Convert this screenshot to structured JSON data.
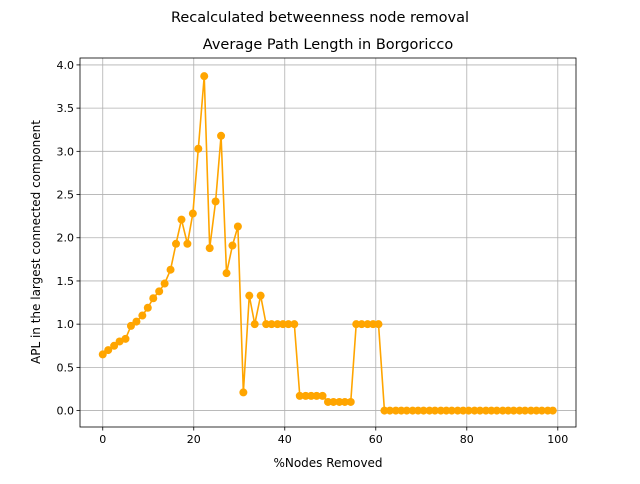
{
  "figure": {
    "suptitle": "Recalculated betweenness node removal"
  },
  "chart_data": {
    "type": "line",
    "title": "Average Path Length in Borgoricco",
    "xlabel": "%Nodes Removed",
    "ylabel": "APL in the largest connected component",
    "xlim": [
      -5,
      104
    ],
    "ylim": [
      -0.19,
      4.08
    ],
    "xticks": [
      0,
      20,
      40,
      60,
      80,
      100
    ],
    "yticks": [
      0.0,
      0.5,
      1.0,
      1.5,
      2.0,
      2.5,
      3.0,
      3.5,
      4.0
    ],
    "xtick_labels": [
      "0",
      "20",
      "40",
      "60",
      "80",
      "100"
    ],
    "ytick_labels": [
      "0.0",
      "0.5",
      "1.0",
      "1.5",
      "2.0",
      "2.5",
      "3.0",
      "3.5",
      "4.0"
    ],
    "grid": true,
    "marker": "circle",
    "color": "#ffa500",
    "series": [
      {
        "x": [
          0,
          1.2,
          2.5,
          3.7,
          5.0,
          6.2,
          7.4,
          8.7,
          9.9,
          11.1,
          12.4,
          13.6,
          14.9,
          16.1,
          17.3,
          18.6,
          19.8,
          21.0,
          22.3,
          23.5,
          24.8,
          26.0,
          27.2,
          28.5,
          29.7,
          30.9,
          32.2,
          33.4,
          34.7,
          35.9,
          37.1,
          38.4,
          39.6,
          40.8,
          42.1,
          43.3,
          44.6,
          45.8,
          47.0,
          48.3,
          49.5,
          50.7,
          52.0,
          53.2,
          54.5,
          55.7,
          56.9,
          58.2,
          59.4,
          60.6,
          61.9,
          63.1,
          64.4,
          65.6,
          66.8,
          68.1,
          69.3,
          70.5,
          71.8,
          73.0,
          74.3,
          75.5,
          76.7,
          78.0,
          79.2,
          80.4,
          81.7,
          82.9,
          84.2,
          85.4,
          86.6,
          87.9,
          89.1,
          90.3,
          91.6,
          92.8,
          94.1,
          95.3,
          96.5,
          97.8,
          98.9
        ],
        "y": [
          0.65,
          0.7,
          0.75,
          0.8,
          0.83,
          0.98,
          1.03,
          1.1,
          1.19,
          1.3,
          1.38,
          1.47,
          1.63,
          1.93,
          2.21,
          1.93,
          2.28,
          3.03,
          3.87,
          1.88,
          2.42,
          3.18,
          1.59,
          1.91,
          2.13,
          0.21,
          1.33,
          1.0,
          1.33,
          1.0,
          1.0,
          1.0,
          1.0,
          1.0,
          1.0,
          0.17,
          0.17,
          0.17,
          0.17,
          0.17,
          0.1,
          0.1,
          0.1,
          0.1,
          0.1,
          1.0,
          1.0,
          1.0,
          1.0,
          1.0,
          0.0,
          0.0,
          0.0,
          0.0,
          0.0,
          0.0,
          0.0,
          0.0,
          0.0,
          0.0,
          0.0,
          0.0,
          0.0,
          0.0,
          0.0,
          0.0,
          0.0,
          0.0,
          0.0,
          0.0,
          0.0,
          0.0,
          0.0,
          0.0,
          0.0,
          0.0,
          0.0,
          0.0,
          0.0,
          0.0,
          0.0
        ]
      }
    ]
  }
}
